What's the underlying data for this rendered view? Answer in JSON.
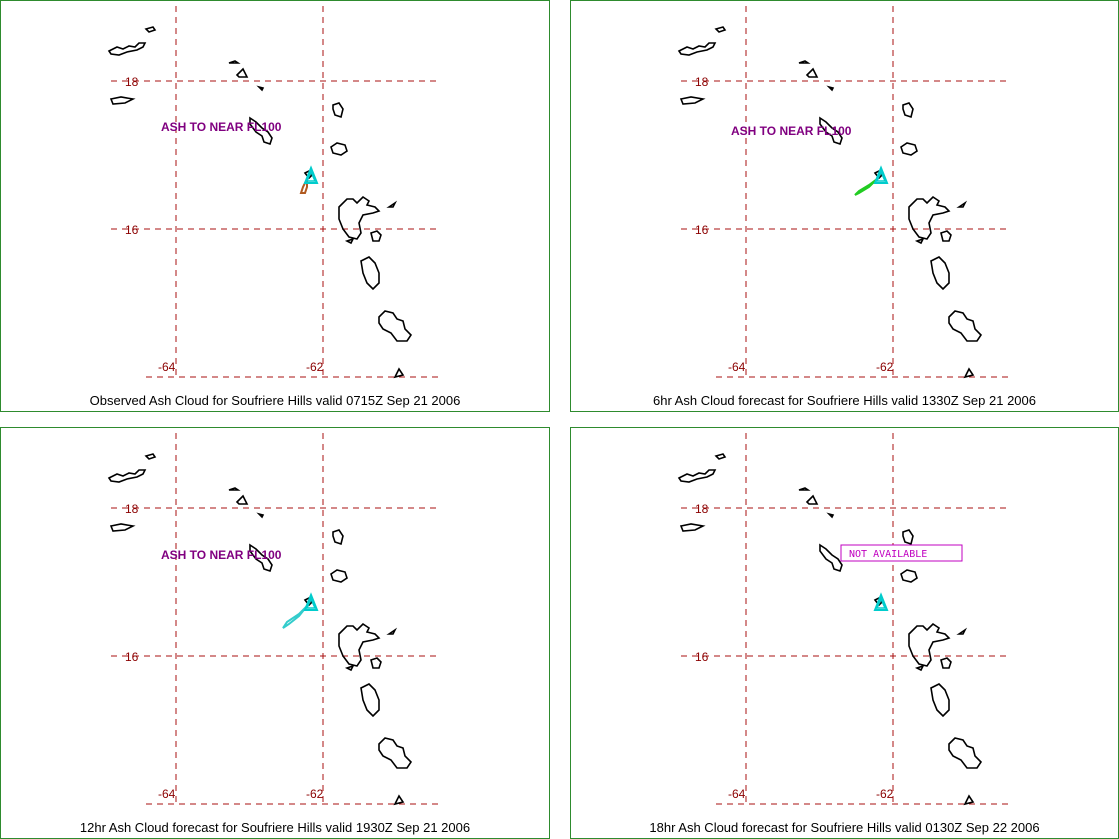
{
  "panels": [
    {
      "caption": "Observed Ash Cloud for Soufriere  Hills valid 0715Z Sep 21 2006",
      "annotation": "ASH TO NEAR FL100",
      "cloud_color": "#b05a20",
      "status": ""
    },
    {
      "caption": "6hr Ash Cloud forecast for Soufriere  Hills valid 1330Z Sep 21 2006",
      "annotation": "ASH TO NEAR FL100",
      "cloud_color": "#22cc22",
      "status": ""
    },
    {
      "caption": "12hr Ash Cloud forecast for Soufriere  Hills valid 1930Z Sep 21 2006",
      "annotation": "ASH TO NEAR FL100",
      "cloud_color": "#33cccc",
      "status": ""
    },
    {
      "caption": "18hr Ash Cloud forecast for Soufriere  Hills valid 0130Z Sep 22 2006",
      "annotation": "",
      "cloud_color": "",
      "status": "NOT AVAILABLE"
    }
  ],
  "lat_labels": [
    "18",
    "16"
  ],
  "lon_labels": [
    "-64",
    "-62"
  ],
  "colors": {
    "grid": "#aa1111",
    "labels": "#8b0000",
    "annotation": "#800080",
    "volcano_marker": "#00cccc",
    "panel_border": "#2e8b2e",
    "coastline": "#000000"
  }
}
